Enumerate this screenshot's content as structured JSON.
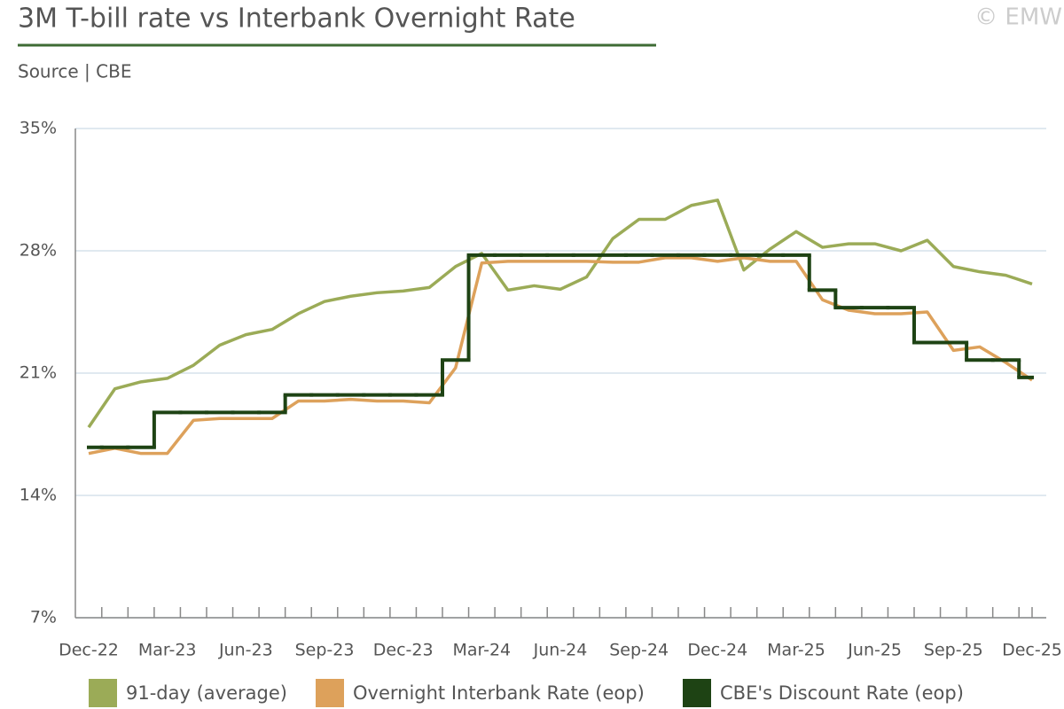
{
  "chart_data": {
    "type": "line",
    "title": "3M T-bill rate vs Interbank Overnight Rate",
    "subtitle": "Source | CBE",
    "watermark": "© EMW",
    "categories": [
      "Dec-22",
      null,
      null,
      "Mar-23",
      null,
      null,
      "Jun-23",
      null,
      null,
      "Sep-23",
      null,
      null,
      "Dec-23",
      null,
      null,
      "Mar-24",
      null,
      null,
      "Jun-24",
      null,
      null,
      "Sep-24",
      null,
      null,
      "Dec-24",
      null,
      null,
      "Mar-25",
      null,
      null,
      "Jun-25",
      null,
      null,
      "Sep-25",
      null,
      null,
      "Dec-25"
    ],
    "series": [
      {
        "name": "91-day (average)",
        "color": "#9bab57",
        "style": "line",
        "values": [
          17.9,
          20.1,
          20.5,
          20.7,
          21.45,
          22.6,
          23.2,
          23.5,
          24.4,
          25.1,
          25.4,
          25.6,
          25.7,
          25.9,
          27.1,
          27.85,
          25.75,
          26.0,
          25.8,
          26.5,
          28.7,
          29.8,
          29.8,
          30.6,
          30.9,
          26.9,
          28.1,
          29.1,
          28.2,
          28.4,
          28.4,
          28.0,
          28.6,
          27.1,
          26.8,
          26.6,
          26.1
        ]
      },
      {
        "name": "Overnight Interbank Rate (eop)",
        "color": "#dda15b",
        "style": "line",
        "values": [
          16.4,
          16.7,
          16.4,
          16.4,
          18.3,
          18.4,
          18.4,
          18.4,
          19.4,
          19.4,
          19.5,
          19.4,
          19.4,
          19.3,
          21.3,
          27.3,
          27.4,
          27.4,
          27.4,
          27.4,
          27.35,
          27.35,
          27.6,
          27.6,
          27.4,
          27.6,
          27.4,
          27.4,
          25.2,
          24.6,
          24.4,
          24.4,
          24.5,
          22.3,
          22.5,
          21.6,
          20.6
        ]
      },
      {
        "name": "CBE's Discount Rate (eop)",
        "color": "#1e4314",
        "style": "step",
        "values": [
          16.75,
          16.75,
          16.75,
          18.75,
          18.75,
          18.75,
          18.75,
          18.75,
          19.75,
          19.75,
          19.75,
          19.75,
          19.75,
          19.75,
          21.75,
          27.75,
          27.75,
          27.75,
          27.75,
          27.75,
          27.75,
          27.75,
          27.75,
          27.75,
          27.75,
          27.75,
          27.75,
          27.75,
          25.75,
          24.75,
          24.75,
          24.75,
          22.75,
          22.75,
          21.75,
          21.75,
          20.75
        ]
      }
    ],
    "ylim": [
      7,
      35
    ],
    "yticks": [
      {
        "value": 7,
        "label": "7%"
      },
      {
        "value": 14,
        "label": "14%"
      },
      {
        "value": 21,
        "label": "21%"
      },
      {
        "value": 28,
        "label": "28%"
      },
      {
        "value": 35,
        "label": "35%"
      }
    ],
    "grid": true
  }
}
